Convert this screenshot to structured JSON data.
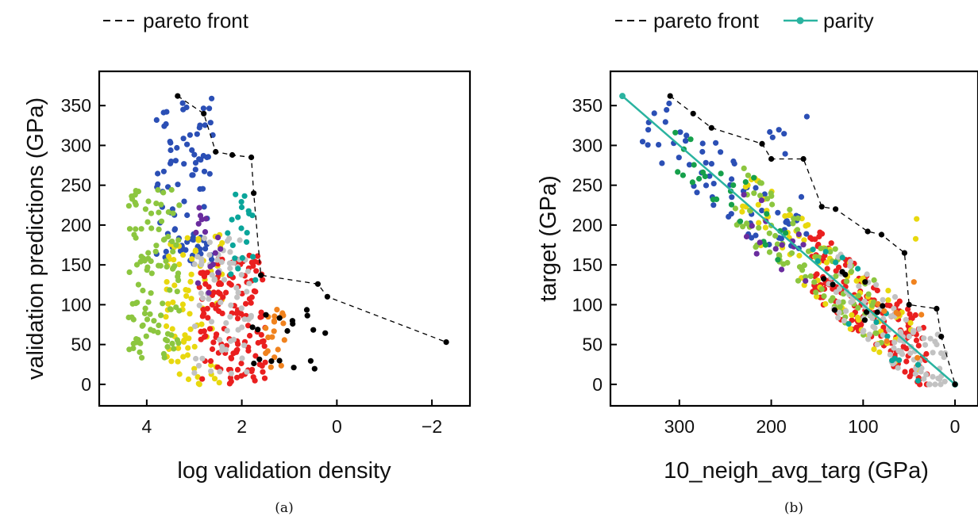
{
  "colors": {
    "pareto": "#000000",
    "parity": "#2ab3a0",
    "clusters": [
      "#2b4fb5",
      "#e8d80e",
      "#8cc63f",
      "#ea1f1f",
      "#c2c2c2",
      "#0aa59a",
      "#f0821e",
      "#6a2c9e",
      "#16a04b",
      "#000000"
    ]
  },
  "chart_data": [
    {
      "type": "scatter",
      "caption": "(a)",
      "xlabel": "log validation density",
      "ylabel": "validation predictions (GPa)",
      "xlim": [
        5.0,
        -2.8
      ],
      "ylim": [
        -27,
        393
      ],
      "x_reversed": true,
      "xticks": [
        4,
        2,
        0,
        -2
      ],
      "xtick_labels": [
        "4",
        "2",
        "0",
        "−2"
      ],
      "yticks": [
        0,
        50,
        100,
        150,
        200,
        250,
        300,
        350
      ],
      "ytick_labels": [
        "0",
        "50",
        "100",
        "150",
        "200",
        "250",
        "300",
        "350"
      ],
      "legend": [
        {
          "name": "pareto front",
          "style": "dashed"
        }
      ],
      "pareto_front": {
        "x": [
          3.35,
          2.8,
          2.55,
          2.2,
          1.8,
          1.75,
          1.6,
          0.4,
          0.2,
          -2.3
        ],
        "y": [
          362,
          340,
          292,
          288,
          285,
          240,
          137,
          126,
          110,
          53
        ]
      },
      "clusters": [
        {
          "color_index": 0,
          "x_range": [
            2.6,
            3.8
          ],
          "y_range": [
            150,
            360
          ],
          "n": 90
        },
        {
          "color_index": 1,
          "x_range": [
            2.4,
            3.6
          ],
          "y_range": [
            0,
            190
          ],
          "n": 80
        },
        {
          "color_index": 2,
          "x_range": [
            3.3,
            4.4
          ],
          "y_range": [
            30,
            245
          ],
          "n": 110
        },
        {
          "color_index": 3,
          "x_range": [
            1.5,
            2.9
          ],
          "y_range": [
            0,
            165
          ],
          "n": 140
        },
        {
          "color_index": 4,
          "x_range": [
            1.8,
            3.0
          ],
          "y_range": [
            10,
            190
          ],
          "n": 70
        },
        {
          "color_index": 5,
          "x_range": [
            1.7,
            2.3
          ],
          "y_range": [
            130,
            245
          ],
          "n": 20
        },
        {
          "color_index": 6,
          "x_range": [
            1.1,
            1.5
          ],
          "y_range": [
            20,
            95
          ],
          "n": 20
        },
        {
          "color_index": 7,
          "x_range": [
            2.4,
            3.0
          ],
          "y_range": [
            110,
            230
          ],
          "n": 15
        },
        {
          "color_index": 9,
          "x_range": [
            0.2,
            1.8
          ],
          "y_range": [
            15,
            95
          ],
          "n": 18
        }
      ]
    },
    {
      "type": "scatter",
      "caption": "(b)",
      "xlabel": "10_neigh_avg_targ (GPa)",
      "ylabel": "target (GPa)",
      "xlim": [
        375,
        -25
      ],
      "ylim": [
        -27,
        393
      ],
      "x_reversed": true,
      "xticks": [
        300,
        200,
        100,
        0
      ],
      "xtick_labels": [
        "300",
        "200",
        "100",
        "0"
      ],
      "yticks": [
        0,
        50,
        100,
        150,
        200,
        250,
        300,
        350
      ],
      "ytick_labels": [
        "0",
        "50",
        "100",
        "150",
        "200",
        "250",
        "300",
        "350"
      ],
      "legend": [
        {
          "name": "pareto front",
          "style": "dashed"
        },
        {
          "name": "parity",
          "style": "line-marker"
        }
      ],
      "parity": {
        "x": [
          362,
          0
        ],
        "y": [
          362,
          0
        ]
      },
      "pareto_front": {
        "x": [
          310,
          285,
          265,
          210,
          200,
          165,
          145,
          130,
          95,
          80,
          55,
          50,
          20,
          15,
          0
        ],
        "y": [
          362,
          340,
          322,
          302,
          283,
          283,
          223,
          220,
          192,
          188,
          165,
          100,
          95,
          60,
          0
        ]
      },
      "clusters": [
        {
          "color_index": 0,
          "x_range": [
            160,
            340
          ],
          "y_range": [
            200,
            360
          ],
          "n": 70
        },
        {
          "color_index": 3,
          "x_range": [
            30,
            160
          ],
          "y_range": [
            10,
            170
          ],
          "n": 160
        },
        {
          "color_index": 1,
          "x_range": [
            40,
            240
          ],
          "y_range": [
            40,
            270
          ],
          "n": 90
        },
        {
          "color_index": 2,
          "x_range": [
            80,
            240
          ],
          "y_range": [
            70,
            260
          ],
          "n": 90
        },
        {
          "color_index": 4,
          "x_range": [
            10,
            140
          ],
          "y_range": [
            10,
            200
          ],
          "n": 100
        },
        {
          "color_index": 8,
          "x_range": [
            180,
            310
          ],
          "y_range": [
            180,
            320
          ],
          "n": 25
        },
        {
          "color_index": 7,
          "x_range": [
            160,
            230
          ],
          "y_range": [
            140,
            220
          ],
          "n": 15
        },
        {
          "color_index": 5,
          "x_range": [
            30,
            160
          ],
          "y_range": [
            20,
            140
          ],
          "n": 15
        },
        {
          "color_index": 6,
          "x_range": [
            30,
            100
          ],
          "y_range": [
            60,
            130
          ],
          "n": 8
        },
        {
          "color_index": 9,
          "x_range": [
            60,
            160
          ],
          "y_range": [
            30,
            130
          ],
          "n": 10
        }
      ]
    }
  ]
}
